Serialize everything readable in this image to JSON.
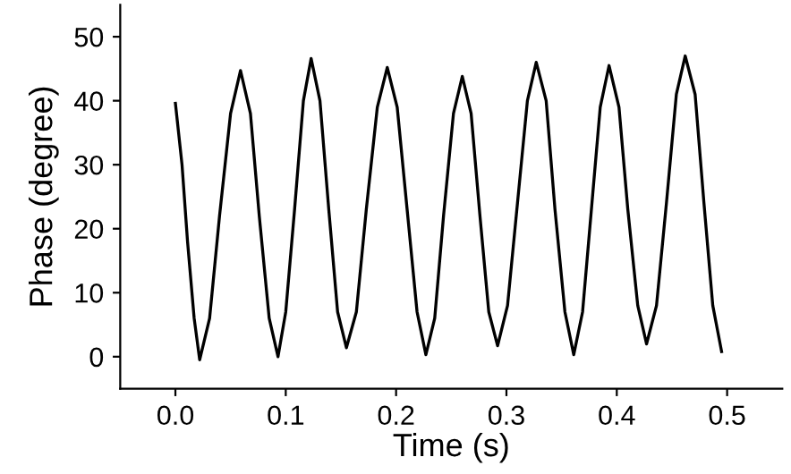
{
  "chart_data": {
    "type": "line",
    "xlabel": "Time (s)",
    "ylabel": "Phase (degree)",
    "x": [
      0,
      0.006,
      0.011,
      0.017,
      0.022,
      0.031,
      0.04,
      0.05,
      0.059,
      0.068,
      0.076,
      0.085,
      0.093,
      0.1,
      0.108,
      0.116,
      0.123,
      0.131,
      0.139,
      0.147,
      0.155,
      0.164,
      0.173,
      0.183,
      0.192,
      0.201,
      0.21,
      0.219,
      0.227,
      0.235,
      0.243,
      0.252,
      0.26,
      0.268,
      0.276,
      0.284,
      0.292,
      0.301,
      0.31,
      0.319,
      0.327,
      0.336,
      0.344,
      0.353,
      0.361,
      0.369,
      0.377,
      0.385,
      0.393,
      0.402,
      0.41,
      0.419,
      0.427,
      0.436,
      0.445,
      0.454,
      0.462,
      0.471,
      0.479,
      0.487,
      0.495
    ],
    "series": [
      {
        "color": "#000000",
        "values": [
          39.6,
          30,
          18,
          6,
          -0.5,
          6,
          22,
          38,
          44.7,
          38,
          22,
          6,
          0,
          7,
          23,
          40,
          46.6,
          40,
          23,
          7,
          1.4,
          7,
          23,
          39,
          45.2,
          39,
          23,
          7,
          0.3,
          6,
          22,
          38,
          43.8,
          38,
          22,
          7,
          1.7,
          8,
          24,
          40,
          46,
          40,
          23,
          7,
          0.3,
          7,
          23,
          39,
          45.5,
          39,
          23,
          8,
          2,
          8,
          24,
          41,
          47,
          41,
          24,
          8,
          0.8
        ]
      }
    ],
    "xlim": [
      -0.05,
      0.55
    ],
    "ylim": [
      -5,
      55
    ],
    "xticks": [
      {
        "value": 0,
        "label": "0.0"
      },
      0.1,
      0.2,
      0.3,
      0.4,
      0.5
    ],
    "yticks": [
      0,
      10,
      20,
      30,
      40,
      50
    ],
    "grid": false,
    "legend": false,
    "marker": "none",
    "line_style": "solid"
  }
}
